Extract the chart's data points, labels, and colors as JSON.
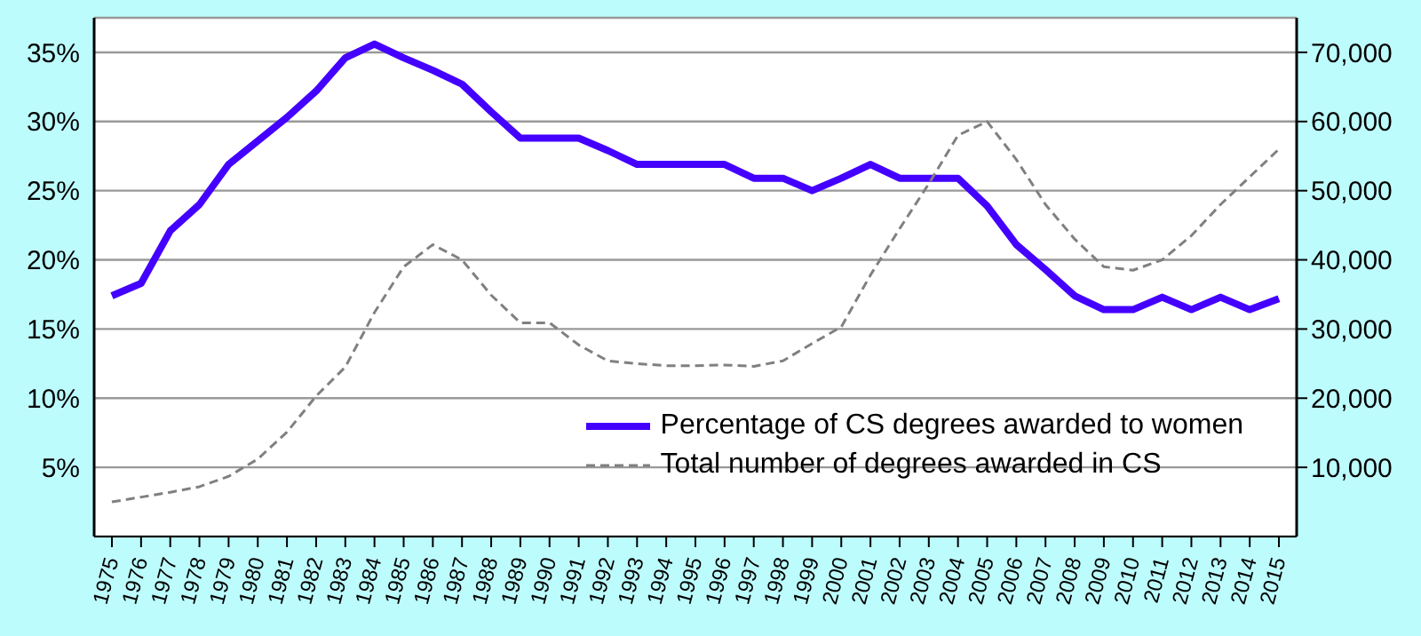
{
  "chart_data": {
    "type": "line",
    "categories": [
      "1975",
      "1976",
      "1977",
      "1978",
      "1979",
      "1980",
      "1981",
      "1982",
      "1983",
      "1984",
      "1985",
      "1986",
      "1987",
      "1988",
      "1989",
      "1990",
      "1991",
      "1992",
      "1993",
      "1994",
      "1995",
      "1996",
      "1997",
      "1998",
      "1999",
      "2000",
      "2001",
      "2002",
      "2003",
      "2004",
      "2005",
      "2006",
      "2007",
      "2008",
      "2009",
      "2010",
      "2011",
      "2012",
      "2013",
      "2014",
      "2015"
    ],
    "series": [
      {
        "name": "Percentage of CS degrees awarded to women",
        "color": "#4400ff",
        "line_style": "solid",
        "values": [
          17.4,
          18.3,
          22.1,
          24,
          26.9,
          28.6,
          30.3,
          32.2,
          34.6,
          35.6,
          34.6,
          33.7,
          32.7,
          30.7,
          28.8,
          28.8,
          28.8,
          27.9,
          26.9,
          26.9,
          26.9,
          26.9,
          25.9,
          25.9,
          25,
          25.9,
          26.9,
          25.9,
          25.9,
          25.9,
          23.9,
          21.1,
          19.3,
          17.4,
          16.4,
          16.4,
          17.3,
          16.4,
          17.3,
          16.4,
          17.2
        ]
      },
      {
        "name": "Total number of degrees awarded in CS",
        "color": "#808080",
        "line_style": "dashed",
        "axis": "y2",
        "values": [
          5000,
          5700,
          6400,
          7200,
          8700,
          11200,
          15100,
          20300,
          24500,
          32400,
          39000,
          42200,
          40000,
          34900,
          30900,
          30900,
          27700,
          25400,
          25000,
          24700,
          24700,
          24800,
          24600,
          25400,
          27900,
          30300,
          37800,
          44500,
          51000,
          58000,
          60000,
          54500,
          48000,
          43000,
          39000,
          38500,
          40000,
          43500,
          48000,
          52000,
          56000
        ]
      }
    ],
    "ylim": [
      0,
      37.5
    ],
    "yticks": [
      {
        "value": 5,
        "label": "5%"
      },
      {
        "value": 10,
        "label": "10%"
      },
      {
        "value": 15,
        "label": "15%"
      },
      {
        "value": 20,
        "label": "20%"
      },
      {
        "value": 25,
        "label": "25%"
      },
      {
        "value": 30,
        "label": "30%"
      },
      {
        "value": 35,
        "label": "35%"
      }
    ],
    "y2lim": [
      0,
      75000
    ],
    "y2ticks": [
      {
        "value": 10000,
        "label": "10,000"
      },
      {
        "value": 20000,
        "label": "20,000"
      },
      {
        "value": 30000,
        "label": "30,000"
      },
      {
        "value": 40000,
        "label": "40,000"
      },
      {
        "value": 50000,
        "label": "50,000"
      },
      {
        "value": 60000,
        "label": "60,000"
      },
      {
        "value": 70000,
        "label": "70,000"
      }
    ],
    "grid": "y",
    "legend": "bottom right",
    "marker": "none"
  }
}
